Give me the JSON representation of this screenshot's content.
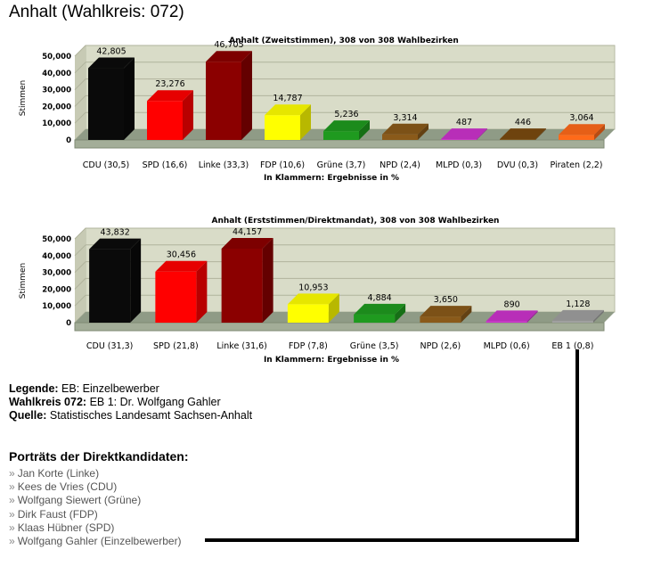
{
  "page": {
    "title": "Anhalt (Wahlkreis: 072)"
  },
  "chart_data": [
    {
      "type": "bar",
      "title": "Anhalt (Zweitstimmen), 308 von 308 Wahlbezirken",
      "ylabel": "Stimmen",
      "xlabel": "In Klammern: Ergebnisse in %",
      "ylim": [
        0,
        50000
      ],
      "yticks": [
        0,
        10000,
        20000,
        30000,
        40000,
        50000
      ],
      "ytick_labels": [
        "0",
        "10,000",
        "20,000",
        "30,000",
        "40,000",
        "50,000"
      ],
      "grid": true,
      "categories": [
        "CDU (30,5)",
        "SPD (16,6)",
        "Linke (33,3)",
        "FDP (10,6)",
        "Grüne (3,7)",
        "NPD (2,4)",
        "MLPD (0,3)",
        "DVU (0,3)",
        "Piraten (2,2)"
      ],
      "values": [
        42805,
        23276,
        46705,
        14787,
        5236,
        3314,
        487,
        446,
        3064
      ],
      "value_labels": [
        "42,805",
        "23,276",
        "46,705",
        "14,787",
        "5,236",
        "3,314",
        "487",
        "446",
        "3,064"
      ],
      "colors": [
        "#0a0a0a",
        "#ff0000",
        "#8b0000",
        "#ffff00",
        "#1f9a1f",
        "#8a5a1a",
        "#cc33cc",
        "#7a4a10",
        "#ff6a1a"
      ]
    },
    {
      "type": "bar",
      "title": "Anhalt (Erststimmen/Direktmandat), 308 von 308 Wahlbezirken",
      "ylabel": "Stimmen",
      "xlabel": "In Klammern: Ergebnisse in %",
      "ylim": [
        0,
        50000
      ],
      "yticks": [
        0,
        10000,
        20000,
        30000,
        40000,
        50000
      ],
      "ytick_labels": [
        "0",
        "10,000",
        "20,000",
        "30,000",
        "40,000",
        "50,000"
      ],
      "grid": true,
      "categories": [
        "CDU (31,3)",
        "SPD (21,8)",
        "Linke (31,6)",
        "FDP (7,8)",
        "Grüne (3,5)",
        "NPD (2,6)",
        "MLPD (0,6)",
        "EB 1 (0,8)"
      ],
      "values": [
        43832,
        30456,
        44157,
        10953,
        4884,
        3650,
        890,
        1128
      ],
      "value_labels": [
        "43,832",
        "30,456",
        "44,157",
        "10,953",
        "4,884",
        "3,650",
        "890",
        "1,128"
      ],
      "colors": [
        "#0a0a0a",
        "#ff0000",
        "#8b0000",
        "#ffff00",
        "#1f9a1f",
        "#8a5a1a",
        "#cc33cc",
        "#a0a0a0"
      ]
    }
  ],
  "info": {
    "legende_label": "Legende:",
    "legende_text": "EB: Einzelbewerber",
    "wahlkreis_label": "Wahlkreis 072:",
    "wahlkreis_text": "EB 1: Dr. Wolfgang Gahler",
    "quelle_label": "Quelle:",
    "quelle_text": "Statistisches Landesamt Sachsen-Anhalt"
  },
  "portraits": {
    "heading": "Porträts der Direktkandidaten:",
    "bullet": "»",
    "items": [
      "Jan Korte (Linke)",
      "Kees de Vries (CDU)",
      "Wolfgang Siewert (Grüne)",
      "Dirk Faust (FDP)",
      "Klaas Hübner (SPD)",
      "Wolfgang Gahler (Einzelbewerber)"
    ]
  }
}
